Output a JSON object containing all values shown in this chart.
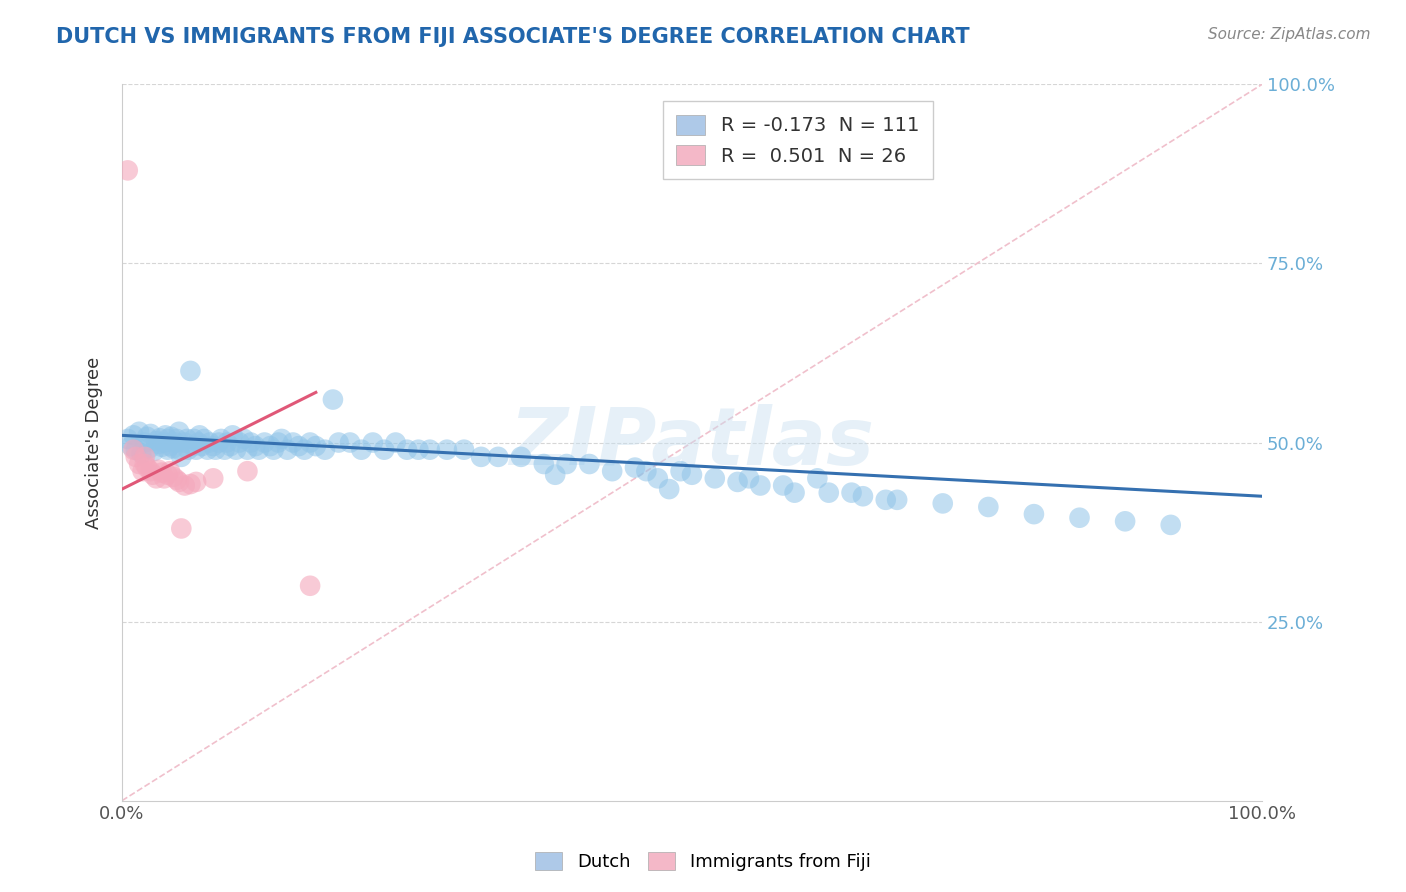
{
  "title": "DUTCH VS IMMIGRANTS FROM FIJI ASSOCIATE'S DEGREE CORRELATION CHART",
  "source_text": "Source: ZipAtlas.com",
  "ylabel": "Associate's Degree",
  "watermark": "ZIPatlas",
  "legend_dutch": "Dutch",
  "legend_fiji": "Immigrants from Fiji",
  "r_dutch": -0.173,
  "n_dutch": 111,
  "r_fiji": 0.501,
  "n_fiji": 26,
  "xlim": [
    0.0,
    1.0
  ],
  "ylim": [
    0.0,
    1.0
  ],
  "blue_scatter_color": "#90c4e8",
  "pink_scatter_color": "#f4a8bc",
  "blue_line_color": "#3570b0",
  "pink_line_color": "#e05878",
  "blue_legend_color": "#aec9e8",
  "pink_legend_color": "#f4b8c8",
  "title_color": "#2166ac",
  "right_tick_color": "#6baed6",
  "background_color": "#ffffff",
  "diag_line_color": "#f0c0cc",
  "dutch_x": [
    0.005,
    0.008,
    0.01,
    0.012,
    0.015,
    0.017,
    0.02,
    0.022,
    0.024,
    0.025,
    0.028,
    0.03,
    0.032,
    0.033,
    0.035,
    0.037,
    0.038,
    0.04,
    0.04,
    0.042,
    0.043,
    0.045,
    0.047,
    0.048,
    0.05,
    0.05,
    0.052,
    0.055,
    0.057,
    0.058,
    0.06,
    0.062,
    0.063,
    0.065,
    0.067,
    0.068,
    0.07,
    0.072,
    0.075,
    0.077,
    0.08,
    0.082,
    0.085,
    0.087,
    0.09,
    0.092,
    0.095,
    0.097,
    0.1,
    0.103,
    0.107,
    0.11,
    0.113,
    0.117,
    0.12,
    0.125,
    0.13,
    0.133,
    0.137,
    0.14,
    0.145,
    0.15,
    0.155,
    0.16,
    0.165,
    0.17,
    0.178,
    0.185,
    0.19,
    0.2,
    0.21,
    0.22,
    0.23,
    0.24,
    0.25,
    0.26,
    0.27,
    0.285,
    0.3,
    0.315,
    0.33,
    0.35,
    0.37,
    0.39,
    0.41,
    0.43,
    0.46,
    0.49,
    0.52,
    0.55,
    0.58,
    0.62,
    0.65,
    0.68,
    0.72,
    0.76,
    0.8,
    0.84,
    0.88,
    0.92,
    0.38,
    0.45,
    0.47,
    0.5,
    0.48,
    0.54,
    0.56,
    0.59,
    0.61,
    0.64,
    0.67
  ],
  "dutch_y": [
    0.505,
    0.495,
    0.51,
    0.49,
    0.515,
    0.485,
    0.5,
    0.508,
    0.492,
    0.512,
    0.488,
    0.502,
    0.498,
    0.506,
    0.494,
    0.5,
    0.51,
    0.49,
    0.505,
    0.495,
    0.508,
    0.492,
    0.5,
    0.505,
    0.49,
    0.515,
    0.48,
    0.5,
    0.505,
    0.49,
    0.6,
    0.495,
    0.505,
    0.49,
    0.5,
    0.51,
    0.495,
    0.505,
    0.49,
    0.5,
    0.495,
    0.49,
    0.5,
    0.505,
    0.49,
    0.5,
    0.495,
    0.51,
    0.49,
    0.5,
    0.505,
    0.49,
    0.5,
    0.495,
    0.49,
    0.5,
    0.495,
    0.49,
    0.5,
    0.505,
    0.49,
    0.5,
    0.495,
    0.49,
    0.5,
    0.495,
    0.49,
    0.56,
    0.5,
    0.5,
    0.49,
    0.5,
    0.49,
    0.5,
    0.49,
    0.49,
    0.49,
    0.49,
    0.49,
    0.48,
    0.48,
    0.48,
    0.47,
    0.47,
    0.47,
    0.46,
    0.46,
    0.46,
    0.45,
    0.45,
    0.44,
    0.43,
    0.425,
    0.42,
    0.415,
    0.41,
    0.4,
    0.395,
    0.39,
    0.385,
    0.455,
    0.465,
    0.45,
    0.455,
    0.435,
    0.445,
    0.44,
    0.43,
    0.45,
    0.43,
    0.42
  ],
  "fiji_x": [
    0.005,
    0.01,
    0.012,
    0.015,
    0.018,
    0.02,
    0.02,
    0.022,
    0.025,
    0.027,
    0.03,
    0.032,
    0.035,
    0.037,
    0.04,
    0.042,
    0.045,
    0.048,
    0.05,
    0.052,
    0.055,
    0.06,
    0.065,
    0.08,
    0.11,
    0.165
  ],
  "fiji_y": [
    0.88,
    0.49,
    0.48,
    0.47,
    0.46,
    0.48,
    0.47,
    0.465,
    0.46,
    0.455,
    0.45,
    0.462,
    0.458,
    0.45,
    0.455,
    0.46,
    0.452,
    0.448,
    0.445,
    0.38,
    0.44,
    0.442,
    0.445,
    0.45,
    0.46,
    0.3
  ],
  "dutch_trend_x0": 0.0,
  "dutch_trend_x1": 1.0,
  "dutch_trend_y0": 0.51,
  "dutch_trend_y1": 0.425,
  "fiji_trend_x0": 0.0,
  "fiji_trend_x1": 0.17,
  "fiji_trend_y0": 0.435,
  "fiji_trend_y1": 0.57
}
